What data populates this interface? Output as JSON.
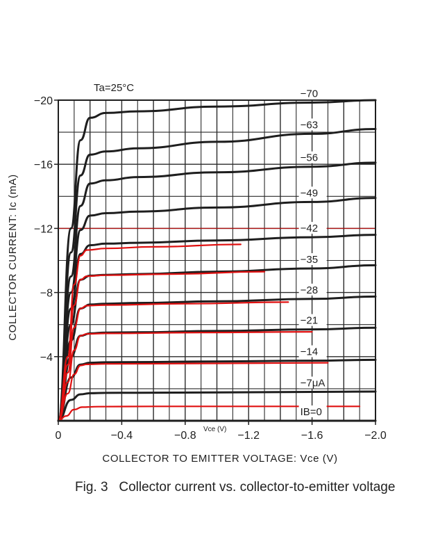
{
  "caption": "Fig. 3   Collector current vs. collector-to-emitter voltage",
  "chart_data": {
    "type": "line",
    "annotation": "Ta=25°C",
    "xlabel": "COLLECTOR TO EMITTER VOLTAGE: Vce (V)",
    "ylabel": "COLLECTOR CURRENT: Ic (mA)",
    "overlay_xlabel": "Vce (V)",
    "xlim": [
      0,
      -2.0
    ],
    "ylim": [
      0,
      -20
    ],
    "x_ticks": [
      0,
      -0.4,
      -0.8,
      -1.2,
      -1.6,
      -2.0
    ],
    "x_tick_labels": [
      "0",
      "−0.4",
      "−0.8",
      "−1.2",
      "−1.6",
      "−2.0"
    ],
    "y_ticks": [
      -20,
      -16,
      -12,
      -8,
      -4
    ],
    "y_tick_labels": [
      "−20",
      "−16",
      "−12",
      "−8",
      "−4"
    ],
    "grid": true,
    "series": [
      {
        "name": "−70",
        "color": "#1e1e1e",
        "x": [
          0,
          -0.08,
          -0.14,
          -0.2,
          -0.3,
          -0.5,
          -1.0,
          -1.6,
          -2.0
        ],
        "y": [
          0,
          -12,
          -17.5,
          -18.9,
          -19.2,
          -19.3,
          -19.6,
          -19.85,
          -20.0
        ]
      },
      {
        "name": "−63",
        "color": "#1e1e1e",
        "x": [
          0,
          -0.08,
          -0.14,
          -0.2,
          -0.3,
          -0.5,
          -1.0,
          -1.6,
          -2.0
        ],
        "y": [
          0,
          -10.5,
          -15.3,
          -16.6,
          -16.8,
          -17.0,
          -17.4,
          -17.9,
          -18.2
        ]
      },
      {
        "name": "−56",
        "color": "#1e1e1e",
        "x": [
          0,
          -0.08,
          -0.14,
          -0.2,
          -0.3,
          -0.5,
          -1.0,
          -1.6,
          -2.0
        ],
        "y": [
          0,
          -9,
          -13.4,
          -14.8,
          -15.0,
          -15.2,
          -15.5,
          -15.85,
          -16.1
        ]
      },
      {
        "name": "−49",
        "color": "#1e1e1e",
        "x": [
          0,
          -0.08,
          -0.14,
          -0.2,
          -0.3,
          -0.5,
          -1.0,
          -1.6,
          -2.0
        ],
        "y": [
          0,
          -8,
          -11.9,
          -12.8,
          -12.95,
          -13.05,
          -13.3,
          -13.65,
          -13.9
        ]
      },
      {
        "name": "−42",
        "color": "#1e1e1e",
        "x": [
          0,
          -0.08,
          -0.14,
          -0.2,
          -0.3,
          -0.5,
          -1.0,
          -1.6,
          -2.0
        ],
        "y": [
          0,
          -7,
          -10.4,
          -10.95,
          -11.05,
          -11.1,
          -11.25,
          -11.45,
          -11.6
        ]
      },
      {
        "name": "−35",
        "color": "#1e1e1e",
        "x": [
          0,
          -0.08,
          -0.14,
          -0.2,
          -0.3,
          -0.5,
          -1.0,
          -1.6,
          -2.0
        ],
        "y": [
          0,
          -6,
          -8.8,
          -9.05,
          -9.1,
          -9.15,
          -9.3,
          -9.5,
          -9.7
        ]
      },
      {
        "name": "−28",
        "color": "#1e1e1e",
        "x": [
          0,
          -0.08,
          -0.14,
          -0.2,
          -0.3,
          -0.5,
          -1.0,
          -1.6,
          -2.0
        ],
        "y": [
          0,
          -5,
          -7.0,
          -7.25,
          -7.3,
          -7.35,
          -7.45,
          -7.6,
          -7.75
        ]
      },
      {
        "name": "−21",
        "color": "#1e1e1e",
        "x": [
          0,
          -0.08,
          -0.14,
          -0.2,
          -0.3,
          -0.5,
          -1.0,
          -1.6,
          -2.0
        ],
        "y": [
          0,
          -4,
          -5.3,
          -5.45,
          -5.5,
          -5.52,
          -5.6,
          -5.7,
          -5.8
        ]
      },
      {
        "name": "−14",
        "color": "#1e1e1e",
        "x": [
          0,
          -0.08,
          -0.14,
          -0.2,
          -0.3,
          -0.5,
          -1.0,
          -1.6,
          -2.0
        ],
        "y": [
          0,
          -2.7,
          -3.5,
          -3.62,
          -3.65,
          -3.66,
          -3.7,
          -3.75,
          -3.8
        ]
      },
      {
        "name": "−7μA",
        "color": "#1e1e1e",
        "x": [
          0,
          -0.08,
          -0.14,
          -0.2,
          -0.3,
          -0.5,
          -1.0,
          -1.6,
          -2.0
        ],
        "y": [
          0,
          -1.3,
          -1.65,
          -1.72,
          -1.74,
          -1.75,
          -1.77,
          -1.8,
          -1.82
        ]
      },
      {
        "name": "IB=0",
        "color": "#1e1e1e",
        "x": [
          0,
          -2.0
        ],
        "y": [
          0,
          0
        ]
      },
      {
        "name": "",
        "color": "#e01010",
        "x": [
          0,
          -0.06,
          -0.1,
          -0.14,
          -0.18,
          -0.3,
          -0.6,
          -1.15
        ],
        "y": [
          0,
          -4,
          -8.5,
          -10.3,
          -10.65,
          -10.75,
          -10.85,
          -11.0
        ]
      },
      {
        "name": "",
        "color": "#e01010",
        "x": [
          0,
          -0.06,
          -0.1,
          -0.14,
          -0.18,
          -0.3,
          -0.7,
          -1.3
        ],
        "y": [
          0,
          -3.5,
          -7.2,
          -8.8,
          -9.02,
          -9.08,
          -9.15,
          -9.3
        ]
      },
      {
        "name": "",
        "color": "#e01010",
        "x": [
          0,
          -0.06,
          -0.1,
          -0.14,
          -0.18,
          -0.3,
          -0.8,
          -1.45
        ],
        "y": [
          0,
          -3,
          -5.8,
          -7.0,
          -7.18,
          -7.22,
          -7.3,
          -7.4
        ]
      },
      {
        "name": "",
        "color": "#e01010",
        "x": [
          0,
          -0.06,
          -0.1,
          -0.14,
          -0.18,
          -0.3,
          -0.9,
          -1.6
        ],
        "y": [
          0,
          -2.4,
          -4.4,
          -5.3,
          -5.42,
          -5.45,
          -5.5,
          -5.55
        ]
      },
      {
        "name": "",
        "color": "#e01010",
        "x": [
          0,
          -0.06,
          -0.1,
          -0.14,
          -0.18,
          -0.3,
          -1.0,
          -1.7
        ],
        "y": [
          0,
          -1.7,
          -2.9,
          -3.45,
          -3.52,
          -3.55,
          -3.58,
          -3.62
        ]
      },
      {
        "name": "",
        "color": "#e01010",
        "x": [
          0,
          -0.05,
          -0.1,
          -0.15,
          -0.25,
          -0.6,
          -1.5,
          -1.9
        ],
        "y": [
          0,
          -0.3,
          -0.7,
          -0.85,
          -0.88,
          -0.9,
          -0.9,
          -0.9
        ]
      }
    ],
    "overlay_box": {
      "color": "#b01010",
      "x": [
        0,
        -2.0
      ],
      "y": [
        0,
        -12
      ]
    }
  }
}
